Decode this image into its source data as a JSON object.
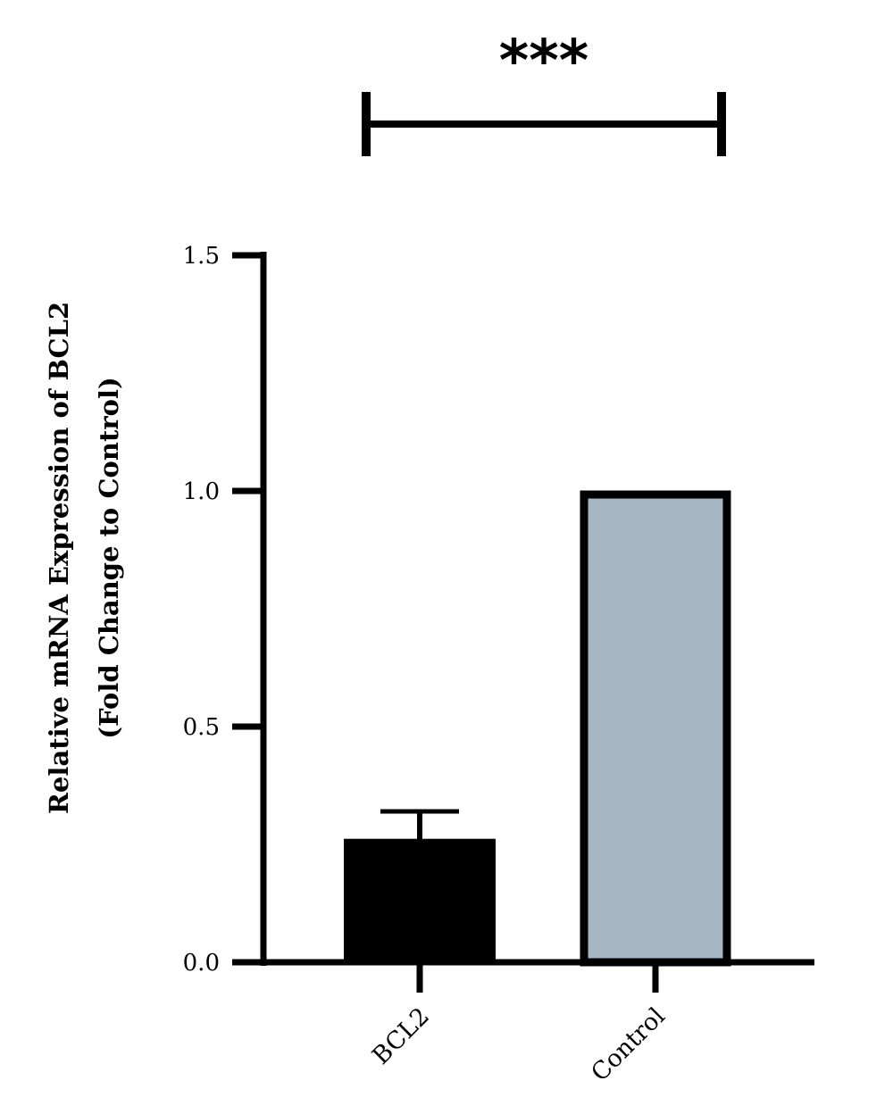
{
  "chart_data": {
    "type": "bar",
    "categories": [
      "BCL2",
      "Control"
    ],
    "values": [
      0.26,
      1.0
    ],
    "errors": [
      0.06,
      0
    ],
    "ylabel_line1": "Relative mRNA Expression of BCL2",
    "ylabel_line2": "(Fold Change to Control)",
    "ylim": [
      0,
      1.5
    ],
    "yticks": [
      "0.0",
      "0.5",
      "1.0",
      "1.5"
    ],
    "significance": "***",
    "bar_colors": [
      "#000000",
      "#a4b5c3"
    ],
    "grid": false
  }
}
